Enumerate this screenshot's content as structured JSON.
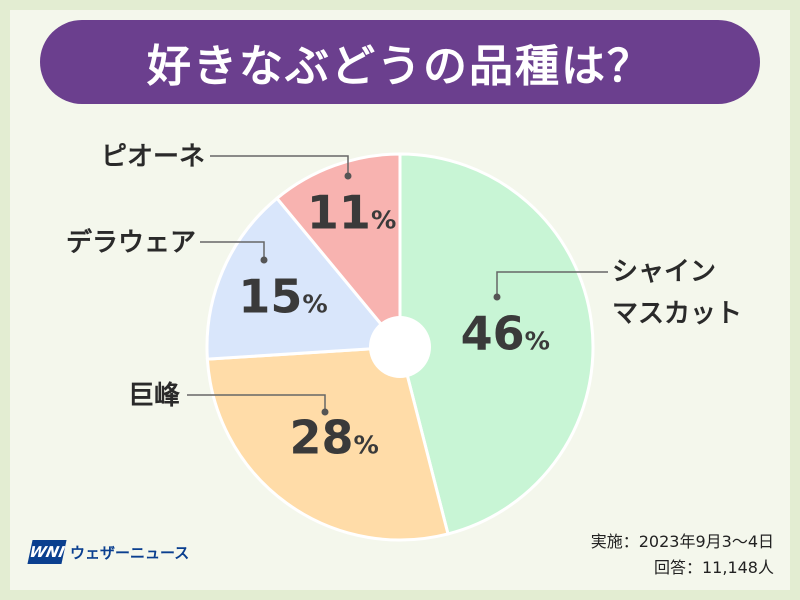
{
  "title": "好きなぶどうの品種は？",
  "chart_data": {
    "type": "pie",
    "title": "好きなぶどうの品種は？",
    "unit": "%",
    "slices": [
      {
        "label": "シャイン\nマスカット",
        "value": 46,
        "color": "#c8f5d5"
      },
      {
        "label": "巨峰",
        "value": 28,
        "color": "#ffdca8"
      },
      {
        "label": "デラウェア",
        "value": 15,
        "color": "#d9e6fb"
      },
      {
        "label": "ピオーネ",
        "value": 11,
        "color": "#f8b3b0"
      }
    ]
  },
  "footnote": {
    "survey_date": "実施：2023年9月3～4日",
    "respondents": "回答：11,148人"
  },
  "logo": {
    "mark": "WNI",
    "name": "ウェザーニュース",
    "brand_color": "#0a3f8f"
  }
}
